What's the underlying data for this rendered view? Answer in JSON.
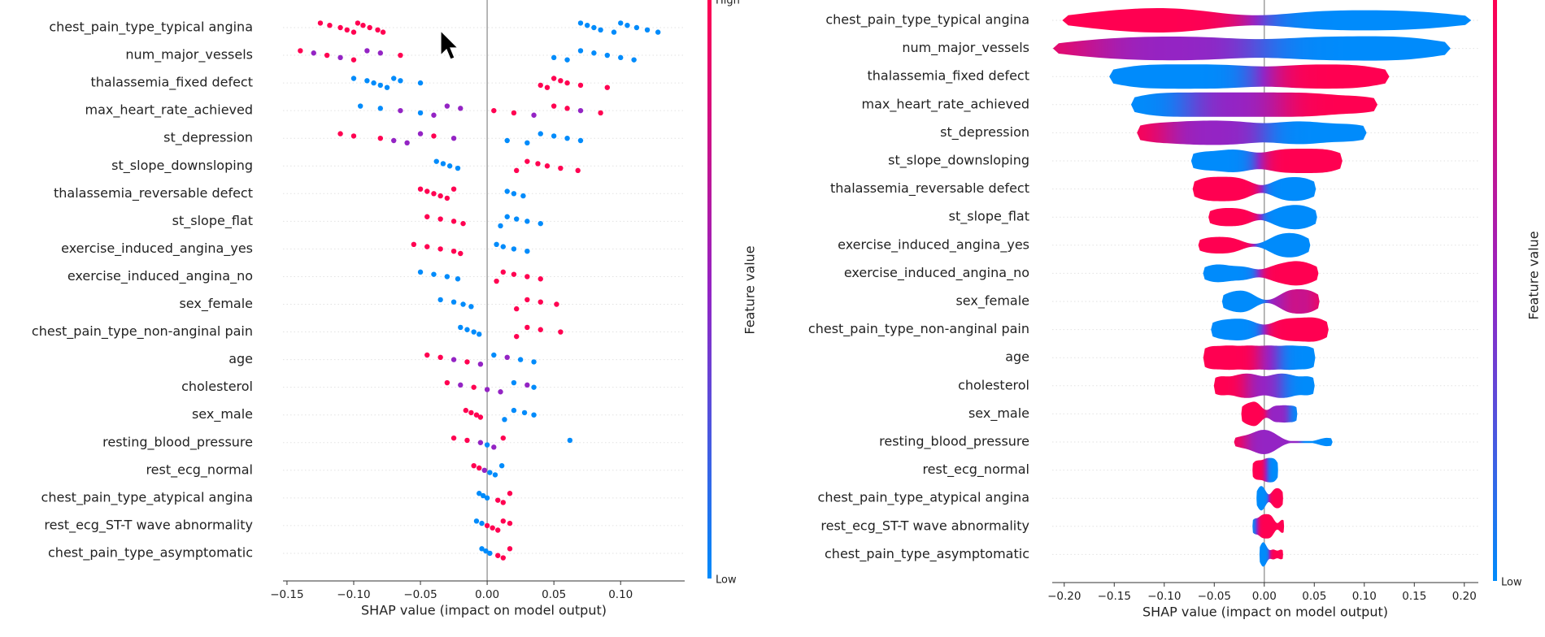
{
  "chart_data": [
    {
      "type": "beeswarm",
      "categories": [
        "chest_pain_type_typical angina",
        "num_major_vessels",
        "thalassemia_fixed defect",
        "max_heart_rate_achieved",
        "st_depression",
        "st_slope_downsloping",
        "thalassemia_reversable defect",
        "st_slope_flat",
        "exercise_induced_angina_yes",
        "exercise_induced_angina_no",
        "sex_female",
        "chest_pain_type_non-anginal pain",
        "age",
        "cholesterol",
        "sex_male",
        "resting_blood_pressure",
        "rest_ecg_normal",
        "chest_pain_type_atypical angina",
        "rest_ecg_ST-T wave abnormality",
        "chest_pain_type_asymptomatic"
      ],
      "values": [
        [
          -0.125,
          -0.118,
          -0.11,
          -0.105,
          -0.1,
          -0.097,
          -0.093,
          -0.088,
          -0.082,
          -0.078,
          0.07,
          0.075,
          0.08,
          0.085,
          0.095,
          0.1,
          0.105,
          0.112,
          0.12,
          0.128
        ],
        [
          -0.14,
          -0.13,
          -0.12,
          -0.11,
          -0.1,
          -0.09,
          -0.08,
          -0.065,
          0.05,
          0.06,
          0.07,
          0.08,
          0.09,
          0.1,
          0.11
        ],
        [
          -0.1,
          -0.09,
          -0.085,
          -0.08,
          -0.075,
          -0.07,
          -0.065,
          -0.05,
          0.04,
          0.045,
          0.05,
          0.055,
          0.06,
          0.07,
          0.09
        ],
        [
          -0.095,
          -0.08,
          -0.065,
          -0.05,
          -0.04,
          -0.03,
          -0.02,
          0.005,
          0.02,
          0.035,
          0.05,
          0.06,
          0.07,
          0.085
        ],
        [
          -0.11,
          -0.1,
          -0.08,
          -0.07,
          -0.06,
          -0.05,
          -0.04,
          -0.025,
          0.015,
          0.03,
          0.04,
          0.05,
          0.06,
          0.07
        ],
        [
          -0.038,
          -0.033,
          -0.028,
          -0.022,
          0.022,
          0.03,
          0.038,
          0.045,
          0.055,
          0.068
        ],
        [
          -0.05,
          -0.045,
          -0.04,
          -0.035,
          -0.03,
          -0.025,
          0.015,
          0.02,
          0.027
        ],
        [
          -0.045,
          -0.035,
          -0.025,
          -0.018,
          0.01,
          0.015,
          0.022,
          0.03,
          0.04
        ],
        [
          -0.055,
          -0.045,
          -0.035,
          -0.025,
          -0.02,
          0.007,
          0.012,
          0.02,
          0.03
        ],
        [
          -0.05,
          -0.04,
          -0.03,
          -0.022,
          0.007,
          0.012,
          0.02,
          0.03,
          0.04
        ],
        [
          -0.035,
          -0.025,
          -0.018,
          -0.012,
          0.022,
          0.03,
          0.04,
          0.052
        ],
        [
          -0.02,
          -0.015,
          -0.01,
          -0.006,
          0.022,
          0.03,
          0.04,
          0.055
        ],
        [
          -0.045,
          -0.035,
          -0.025,
          -0.015,
          -0.005,
          0.005,
          0.015,
          0.025,
          0.035
        ],
        [
          -0.03,
          -0.02,
          -0.01,
          0,
          0.01,
          0.02,
          0.03,
          0.035
        ],
        [
          -0.016,
          -0.012,
          -0.008,
          -0.005,
          0.013,
          0.02,
          0.028,
          0.035
        ],
        [
          -0.025,
          -0.015,
          -0.005,
          0,
          0.005,
          0.012,
          0.062
        ],
        [
          -0.01,
          -0.006,
          -0.002,
          0.002,
          0.006,
          0.011
        ],
        [
          -0.006,
          -0.003,
          0,
          0.008,
          0.012,
          0.017
        ],
        [
          -0.008,
          -0.004,
          0,
          0.004,
          0.008,
          0.012,
          0.017
        ],
        [
          -0.004,
          -0.001,
          0.002,
          0.008,
          0.012,
          0.017
        ]
      ],
      "feature_levels": [
        [
          1,
          1,
          1,
          1,
          1,
          1,
          1,
          1,
          1,
          1,
          0,
          0,
          0,
          0,
          0,
          0,
          0,
          0,
          0,
          0
        ],
        [
          1,
          0.5,
          1,
          0.5,
          1,
          0.5,
          0.5,
          1,
          0,
          0,
          0,
          0,
          0,
          0,
          0
        ],
        [
          0,
          0,
          0,
          0,
          0,
          0,
          0,
          0,
          1,
          1,
          1,
          1,
          1,
          1,
          1
        ],
        [
          0,
          0,
          0.5,
          0,
          0.5,
          0.5,
          0.5,
          1,
          1,
          0.5,
          1,
          1,
          0.5,
          1
        ],
        [
          1,
          1,
          1,
          0.5,
          0.5,
          0.5,
          1,
          0.5,
          0,
          0,
          0,
          0,
          0,
          0
        ],
        [
          0,
          0,
          0,
          0,
          1,
          1,
          1,
          1,
          1,
          1
        ],
        [
          1,
          1,
          1,
          1,
          1,
          1,
          0,
          0,
          0
        ],
        [
          1,
          1,
          1,
          1,
          0,
          0,
          0,
          0,
          0
        ],
        [
          1,
          1,
          1,
          1,
          1,
          0,
          0,
          0,
          0
        ],
        [
          0,
          0,
          0,
          0,
          1,
          1,
          1,
          1,
          1
        ],
        [
          0,
          0,
          0,
          0,
          1,
          1,
          1,
          1
        ],
        [
          0,
          0,
          0,
          0,
          1,
          1,
          1,
          1
        ],
        [
          1,
          1,
          0.5,
          1,
          0.5,
          0,
          0.5,
          0,
          0
        ],
        [
          1,
          0.5,
          1,
          0.5,
          0.5,
          0,
          0.5,
          0
        ],
        [
          1,
          1,
          1,
          1,
          0,
          0,
          0,
          0
        ],
        [
          1,
          1,
          0.5,
          0,
          0.5,
          1,
          0
        ],
        [
          1,
          1,
          0.5,
          0,
          0,
          0
        ],
        [
          0,
          0,
          0,
          1,
          1,
          1
        ],
        [
          0,
          0,
          1,
          1,
          1,
          1,
          1
        ],
        [
          0,
          0,
          0,
          1,
          1,
          1
        ]
      ],
      "xlabel": "SHAP value (impact on model output)",
      "xlim": [
        -0.153,
        0.148
      ],
      "xticks": [
        {
          "value": -0.15,
          "label": "−0.15"
        },
        {
          "value": -0.1,
          "label": "−0.10"
        },
        {
          "value": -0.05,
          "label": "−0.05"
        },
        {
          "value": 0,
          "label": "0.00"
        },
        {
          "value": 0.05,
          "label": "0.05"
        },
        {
          "value": 0.1,
          "label": "0.10"
        }
      ],
      "colorbar": {
        "label": "Feature value",
        "high": "High",
        "low": "Low",
        "colors": [
          "#008bfb",
          "#9424c4",
          "#ff0051"
        ]
      },
      "grid": true
    },
    {
      "type": "violin",
      "categories": [
        "chest_pain_type_typical angina",
        "num_major_vessels",
        "thalassemia_fixed defect",
        "max_heart_rate_achieved",
        "st_depression",
        "st_slope_downsloping",
        "thalassemia_reversable defect",
        "st_slope_flat",
        "exercise_induced_angina_yes",
        "exercise_induced_angina_no",
        "sex_female",
        "chest_pain_type_non-anginal pain",
        "age",
        "cholesterol",
        "sex_male",
        "resting_blood_pressure",
        "rest_ecg_normal",
        "chest_pain_type_atypical angina",
        "rest_ecg_ST-T wave abnormality",
        "chest_pain_type_asymptomatic"
      ],
      "values": [
        [
          -0.18,
          -0.15,
          -0.12,
          -0.1,
          -0.08,
          -0.05,
          0.03,
          0.06,
          0.09,
          0.12,
          0.15,
          0.185
        ],
        [
          -0.19,
          -0.15,
          -0.12,
          -0.09,
          -0.06,
          -0.03,
          0.02,
          0.05,
          0.08,
          0.11,
          0.14,
          0.165
        ],
        [
          -0.14,
          -0.11,
          -0.08,
          -0.05,
          -0.02,
          0.02,
          0.05,
          0.08,
          0.11
        ],
        [
          -0.12,
          -0.09,
          -0.06,
          -0.03,
          0,
          0.03,
          0.06,
          0.1
        ],
        [
          -0.115,
          -0.08,
          -0.05,
          -0.02,
          0.02,
          0.05,
          0.09
        ],
        [
          -0.065,
          -0.04,
          -0.02,
          0.01,
          0.03,
          0.05,
          0.07
        ],
        [
          -0.065,
          -0.05,
          -0.035,
          -0.02,
          0.015,
          0.03,
          0.045
        ],
        [
          -0.05,
          -0.035,
          -0.02,
          0.012,
          0.025,
          0.035,
          0.047
        ],
        [
          -0.06,
          -0.045,
          -0.03,
          0.01,
          0.02,
          0.03,
          0.04
        ],
        [
          -0.055,
          -0.04,
          -0.02,
          0.01,
          0.025,
          0.035,
          0.048
        ],
        [
          -0.037,
          -0.025,
          -0.015,
          0.02,
          0.03,
          0.04,
          0.05
        ],
        [
          -0.047,
          -0.03,
          -0.015,
          0.015,
          0.03,
          0.045,
          0.058
        ],
        [
          -0.055,
          -0.035,
          -0.015,
          0.005,
          0.025,
          0.045
        ],
        [
          -0.045,
          -0.025,
          -0.01,
          0.01,
          0.025,
          0.045
        ],
        [
          -0.02,
          -0.012,
          -0.006,
          0.01,
          0.02,
          0.03
        ],
        [
          -0.025,
          -0.01,
          -0.003,
          0.003,
          0.01,
          0.063
        ],
        [
          -0.01,
          -0.005,
          0,
          0.004,
          0.008,
          0.012
        ],
        [
          -0.006,
          -0.003,
          0,
          0.009,
          0.013,
          0.017
        ],
        [
          -0.01,
          -0.004,
          0,
          0.004,
          0.008,
          0.018
        ],
        [
          -0.003,
          -0.001,
          0.001,
          0.009,
          0.017
        ]
      ],
      "feature_levels": [
        [
          1,
          1,
          1,
          1,
          1,
          1,
          0,
          0,
          0,
          0,
          0,
          0
        ],
        [
          1,
          0.5,
          0.5,
          0.5,
          0.5,
          0.5,
          0,
          0,
          0,
          0,
          0,
          0
        ],
        [
          0,
          0,
          0,
          0,
          0,
          1,
          1,
          1,
          1
        ],
        [
          0,
          0,
          0.5,
          0.5,
          0.5,
          1,
          1,
          1
        ],
        [
          1,
          0.5,
          0.5,
          0.5,
          0,
          0,
          0
        ],
        [
          0,
          0,
          0,
          1,
          1,
          1,
          1
        ],
        [
          1,
          1,
          1,
          1,
          0,
          0,
          0
        ],
        [
          1,
          1,
          1,
          0,
          0,
          0,
          0
        ],
        [
          1,
          1,
          1,
          0,
          0,
          0,
          0
        ],
        [
          0,
          0,
          0,
          1,
          1,
          1,
          1
        ],
        [
          0,
          0,
          0,
          0.5,
          1,
          0.5,
          1
        ],
        [
          0,
          0,
          0,
          1,
          1,
          1,
          1
        ],
        [
          1,
          1,
          1,
          0.5,
          0,
          0
        ],
        [
          1,
          1,
          0.5,
          0.5,
          0,
          0
        ],
        [
          1,
          1,
          1,
          0.5,
          0.5,
          0
        ],
        [
          1,
          0.5,
          0.5,
          0.5,
          0.5,
          0
        ],
        [
          1,
          1,
          1,
          0,
          0,
          0
        ],
        [
          0,
          0,
          0,
          1,
          1,
          1
        ],
        [
          0,
          1,
          1,
          1,
          1,
          1
        ],
        [
          0,
          0,
          0,
          1,
          1
        ]
      ],
      "xlabel": "SHAP value (impact on model output)",
      "xlim": [
        -0.212,
        0.214
      ],
      "xticks": [
        {
          "value": -0.2,
          "label": "−0.20"
        },
        {
          "value": -0.15,
          "label": "−0.15"
        },
        {
          "value": -0.1,
          "label": "−0.10"
        },
        {
          "value": -0.05,
          "label": "−0.05"
        },
        {
          "value": 0,
          "label": "0.00"
        },
        {
          "value": 0.05,
          "label": "0.05"
        },
        {
          "value": 0.1,
          "label": "0.10"
        },
        {
          "value": 0.15,
          "label": "0.15"
        },
        {
          "value": 0.2,
          "label": "0.20"
        }
      ],
      "colorbar": {
        "label": "Feature value",
        "low": "Low",
        "colors": [
          "#008bfb",
          "#9424c4",
          "#ff0051"
        ]
      },
      "grid": true
    }
  ]
}
